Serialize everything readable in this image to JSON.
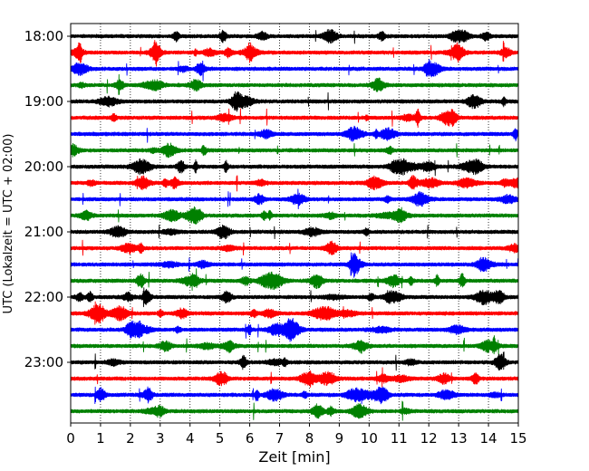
{
  "chart_data": {
    "type": "seismogram-helicorder",
    "xlabel": "Zeit  [min]",
    "ylabel": "UTC (Lokalzeit = UTC + 02:00)",
    "xlim": [
      0,
      15
    ],
    "x_ticks": [
      "0",
      "1",
      "2",
      "3",
      "4",
      "5",
      "6",
      "7",
      "8",
      "9",
      "10",
      "11",
      "12",
      "13",
      "14",
      "15"
    ],
    "y_tick_labels": [
      "18:00",
      "19:00",
      "20:00",
      "21:00",
      "22:00",
      "23:00"
    ],
    "trace_interval_minutes": 15,
    "first_trace_utc": "18:00",
    "last_trace_utc": "23:45",
    "trace_count": 24,
    "trace_colors": [
      "#000000",
      "#ff0000",
      "#0000ff",
      "#008000"
    ],
    "vertical_grid": "dotted",
    "traces": [
      {
        "start": "18:00",
        "color": "#000000"
      },
      {
        "start": "18:15",
        "color": "#ff0000"
      },
      {
        "start": "18:30",
        "color": "#0000ff"
      },
      {
        "start": "18:45",
        "color": "#008000"
      },
      {
        "start": "19:00",
        "color": "#000000"
      },
      {
        "start": "19:15",
        "color": "#ff0000"
      },
      {
        "start": "19:30",
        "color": "#0000ff"
      },
      {
        "start": "19:45",
        "color": "#008000"
      },
      {
        "start": "20:00",
        "color": "#000000"
      },
      {
        "start": "20:15",
        "color": "#ff0000"
      },
      {
        "start": "20:30",
        "color": "#0000ff"
      },
      {
        "start": "20:45",
        "color": "#008000"
      },
      {
        "start": "21:00",
        "color": "#000000"
      },
      {
        "start": "21:15",
        "color": "#ff0000"
      },
      {
        "start": "21:30",
        "color": "#0000ff"
      },
      {
        "start": "21:45",
        "color": "#008000"
      },
      {
        "start": "22:00",
        "color": "#000000"
      },
      {
        "start": "22:15",
        "color": "#ff0000"
      },
      {
        "start": "22:30",
        "color": "#0000ff"
      },
      {
        "start": "22:45",
        "color": "#008000"
      },
      {
        "start": "23:00",
        "color": "#000000"
      },
      {
        "start": "23:15",
        "color": "#ff0000"
      },
      {
        "start": "23:30",
        "color": "#0000ff"
      },
      {
        "start": "23:45",
        "color": "#008000"
      }
    ]
  }
}
